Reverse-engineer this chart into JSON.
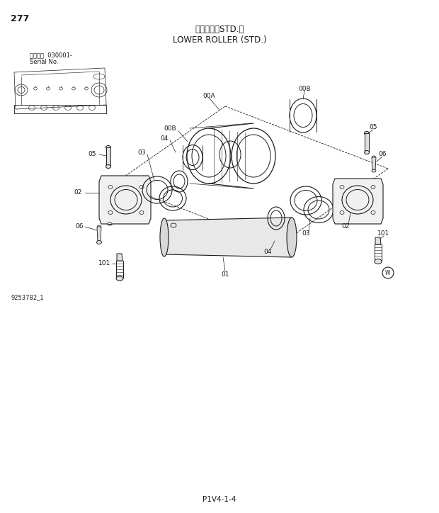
{
  "title_japanese": "下ローラ（STD.）",
  "title_english": "LOWER ROLLER (STD.)",
  "page_number": "277",
  "serial_info_line1": "適用機種  030001-",
  "serial_info_line2": "Serial No.",
  "image_id": "9253782_1",
  "footer": "P1V4-1-4",
  "background_color": "#ffffff",
  "line_color": "#1a1a1a",
  "text_color": "#1a1a1a",
  "fig_width": 6.2,
  "fig_height": 7.24,
  "dpi": 100
}
